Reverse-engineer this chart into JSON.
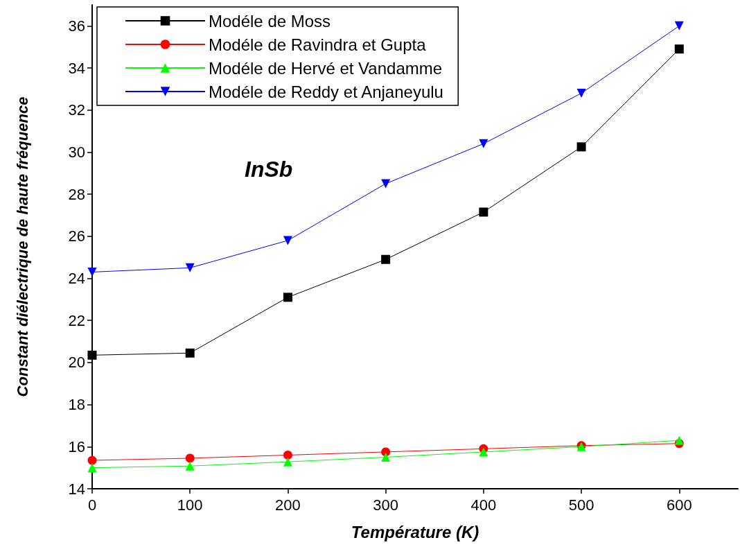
{
  "chart_data": {
    "type": "line",
    "xlabel": "Température (K)",
    "ylabel": "Constant diélectrique de haute fréquence",
    "annotations": [
      "InSb"
    ],
    "x": [
      0,
      100,
      200,
      300,
      400,
      500,
      600
    ],
    "series": [
      {
        "name": "Modéle de Moss",
        "color": "#000000",
        "marker": "square",
        "values": [
          20.35,
          20.45,
          23.1,
          24.9,
          27.15,
          30.25,
          34.9
        ]
      },
      {
        "name": "Modéle de Ravindra et Gupta",
        "color": "#ff0000",
        "marker": "circle",
        "values": [
          15.35,
          15.45,
          15.6,
          15.75,
          15.9,
          16.05,
          16.15
        ]
      },
      {
        "name": "Modéle de Hervé et Vandamme",
        "color": "#00ff00",
        "marker": "triangle",
        "values": [
          15.0,
          15.08,
          15.28,
          15.5,
          15.75,
          16.0,
          16.3
        ]
      },
      {
        "name": "Modéle de Reddy et Anjaneyulu",
        "color": "#0000ff",
        "marker": "triangle-down",
        "values": [
          24.3,
          24.5,
          25.8,
          28.5,
          30.4,
          32.8,
          36.0
        ]
      }
    ],
    "xlim": [
      0,
      660
    ],
    "xticks": [
      0,
      100,
      200,
      300,
      400,
      500,
      600
    ],
    "ylim": [
      14,
      37
    ],
    "yticks": [
      14,
      16,
      18,
      20,
      22,
      24,
      26,
      28,
      30,
      32,
      34,
      36
    ],
    "grid": false,
    "legend": "top left",
    "line_style": "solid"
  }
}
